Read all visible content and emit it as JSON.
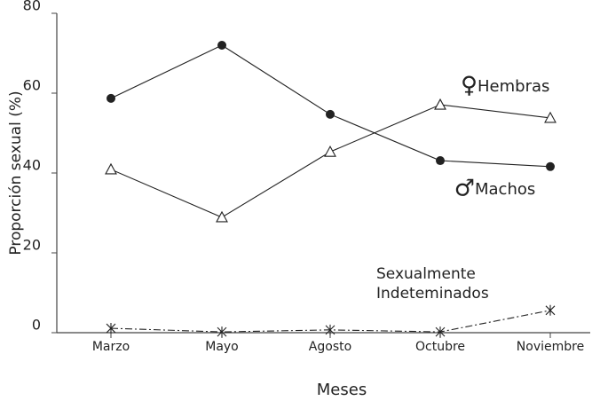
{
  "chart_data": {
    "type": "line",
    "x_label": "Meses",
    "y_label": "Proporción sexual (%)",
    "categories": [
      "Marzo",
      "Mayo",
      "Agosto",
      "Octubre",
      "Noviembre"
    ],
    "ylim": [
      0,
      80
    ],
    "yticks": [
      0,
      20,
      40,
      60,
      80
    ],
    "series": [
      {
        "name": "Hembras",
        "symbol": "♀",
        "marker": "triangle",
        "color": "#222",
        "values": [
          40.9,
          28.9,
          45.3,
          57.1,
          53.8
        ]
      },
      {
        "name": "Machos",
        "symbol": "♂",
        "marker": "circle",
        "color": "#222",
        "values": [
          58.7,
          72,
          54.7,
          43.1,
          41.6
        ]
      },
      {
        "name": "Sexualmente Indeteminados",
        "marker": "asterisk",
        "color": "#222",
        "dash": "dashdot",
        "values": [
          1.1,
          0.2,
          0.7,
          0.2,
          5.6
        ]
      }
    ]
  }
}
